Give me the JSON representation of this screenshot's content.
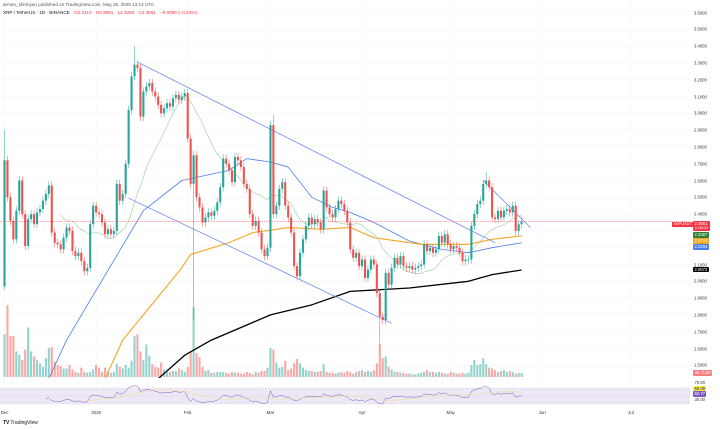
{
  "header": {
    "publisher_line": "arman_shirinyan published on TradingView.com, May 25, 2025 13:14 UTC",
    "symbol": "XRP / TetherUS · 1D · BINANCE",
    "open": "O2.3415",
    "high": "H2.3591",
    "low": "L2.3293",
    "close": "C2.3561",
    "change": "−0.0056 (−0.24%)"
  },
  "footer": {
    "logo_text": "TradingView",
    "logo_icon": "tradingview-logo-icon"
  },
  "colors": {
    "up": "#26a69a",
    "down": "#ef5350",
    "up_volume": "#94d3cd",
    "down_volume": "#f7a9a7",
    "ma_fast": "#9ccc9c",
    "ma_blue": "#4a7df0",
    "ma_orange": "#f5a623",
    "ma_black": "#000000",
    "trendline": "#5b84ec",
    "rsi": "#7e57c2",
    "rsi_ma": "#f0e68c",
    "rsi_band": "#ede7f6"
  },
  "chart_data": {
    "type": "candlestick",
    "interval": "1D",
    "x_start": "2024-12-01",
    "first_open": 1.97,
    "ylim": [
      1.4,
      3.65
    ],
    "grid": true,
    "price_ticks": [
      "3.6000",
      "3.5000",
      "3.4000",
      "3.3000",
      "3.2000",
      "3.1000",
      "3.0000",
      "2.9000",
      "2.8000",
      "2.7000",
      "2.6000",
      "2.5000",
      "2.4000",
      "2.1000",
      "2.0000",
      "1.9000",
      "1.8000",
      "1.7000",
      "1.6000",
      "1.5000"
    ],
    "x_ticks": [
      {
        "label": "Dec",
        "date": "2024-12-01"
      },
      {
        "label": "2025",
        "date": "2025-01-01"
      },
      {
        "label": "Feb",
        "date": "2025-02-01"
      },
      {
        "label": "Mar",
        "date": "2025-03-01"
      },
      {
        "label": "Apr",
        "date": "2025-04-01"
      },
      {
        "label": "May",
        "date": "2025-05-01"
      },
      {
        "label": "Jun",
        "date": "2025-06-01"
      },
      {
        "label": "Jul",
        "date": "2025-07-01"
      }
    ],
    "close": [
      2.72,
      2.5,
      2.36,
      2.25,
      2.42,
      2.6,
      2.4,
      2.21,
      2.37,
      2.4,
      2.34,
      2.41,
      2.43,
      2.48,
      2.52,
      2.57,
      2.29,
      2.23,
      2.22,
      2.19,
      2.26,
      2.32,
      2.3,
      2.18,
      2.15,
      2.17,
      2.12,
      2.06,
      2.08,
      2.34,
      2.45,
      2.41,
      2.4,
      2.35,
      2.28,
      2.31,
      2.28,
      2.3,
      2.58,
      2.48,
      2.52,
      2.7,
      3.02,
      3.22,
      3.29,
      3.27,
      2.98,
      3.13,
      3.16,
      3.18,
      3.13,
      3.1,
      3.05,
      3.0,
      3.03,
      3.06,
      3.04,
      3.09,
      3.11,
      3.08,
      3.1,
      3.12,
      2.85,
      2.58,
      2.75,
      2.5,
      2.44,
      2.35,
      2.38,
      2.41,
      2.39,
      2.42,
      2.47,
      2.56,
      2.73,
      2.7,
      2.66,
      2.59,
      2.74,
      2.72,
      2.68,
      2.58,
      2.55,
      2.4,
      2.33,
      2.36,
      2.29,
      2.19,
      2.15,
      2.2,
      2.93,
      2.4,
      2.45,
      2.55,
      2.59,
      2.45,
      2.38,
      2.29,
      2.09,
      2.03,
      2.17,
      2.25,
      2.33,
      2.38,
      2.34,
      2.37,
      2.35,
      2.31,
      2.54,
      2.44,
      2.4,
      2.38,
      2.43,
      2.48,
      2.46,
      2.42,
      2.35,
      2.19,
      2.14,
      2.17,
      2.09,
      2.13,
      2.02,
      2.07,
      2.13,
      2.1,
      1.93,
      1.79,
      1.77,
      2.05,
      1.98,
      2.08,
      2.14,
      2.1,
      2.15,
      2.09,
      2.08,
      2.09,
      2.07,
      2.08,
      2.09,
      2.1,
      2.22,
      2.18,
      2.2,
      2.17,
      2.19,
      2.27,
      2.23,
      2.28,
      2.22,
      2.19,
      2.21,
      2.2,
      2.17,
      2.12,
      2.13,
      2.13,
      2.33,
      2.4,
      2.46,
      2.48,
      2.58,
      2.6,
      2.56,
      2.38,
      2.37,
      2.42,
      2.38,
      2.42,
      2.43,
      2.41,
      2.45,
      2.3,
      2.34,
      2.3561
    ],
    "notable_wicks": [
      {
        "date": "2024-12-01",
        "high": 2.9,
        "low": 1.95
      },
      {
        "date": "2025-01-14",
        "high": 3.4
      },
      {
        "date": "2025-02-03",
        "low": 1.77
      },
      {
        "date": "2025-03-02",
        "high": 2.99
      },
      {
        "date": "2025-04-07",
        "low": 1.61
      },
      {
        "date": "2025-05-13",
        "high": 2.65
      }
    ],
    "volume": [
      500,
      840,
      480,
      480,
      300,
      260,
      200,
      320,
      580,
      300,
      240,
      200,
      160,
      120,
      220,
      340,
      350,
      180,
      140,
      130,
      100,
      100,
      140,
      90,
      60,
      50,
      110,
      60,
      50,
      60,
      90,
      140,
      110,
      60,
      110,
      70,
      50,
      60,
      150,
      120,
      100,
      140,
      110,
      190,
      480,
      500,
      300,
      200,
      380,
      250,
      150,
      120,
      110,
      170,
      90,
      60,
      60,
      70,
      70,
      100,
      80,
      60,
      120,
      300,
      820,
      280,
      230,
      120,
      70,
      80,
      50,
      50,
      60,
      60,
      60,
      50,
      40,
      60,
      50,
      50,
      40,
      40,
      60,
      50,
      30,
      60,
      50,
      70,
      70,
      110,
      340,
      320,
      170,
      110,
      120,
      190,
      80,
      100,
      160,
      210,
      160,
      110,
      80,
      70,
      70,
      60,
      60,
      70,
      150,
      60,
      50,
      50,
      40,
      50,
      60,
      50,
      70,
      60,
      40,
      60,
      70,
      80,
      60,
      70,
      60,
      80,
      160,
      380,
      220,
      240,
      120,
      90,
      60,
      60,
      50,
      50,
      40,
      40,
      30,
      30,
      40,
      50,
      60,
      80,
      60,
      60,
      50,
      60,
      50,
      40,
      40,
      60,
      50,
      40,
      40,
      50,
      40,
      50,
      140,
      200,
      140,
      150,
      220,
      150,
      110,
      100,
      80,
      60,
      70,
      80,
      60,
      70,
      60,
      40,
      50,
      47
    ],
    "moving_averages": [
      {
        "color_key": "ma_blue",
        "points": [
          [
            "2024-12-16",
            1.42
          ],
          [
            "2024-12-22",
            1.65
          ],
          [
            "2025-01-17",
            2.42
          ],
          [
            "2025-01-30",
            2.6
          ],
          [
            "2025-02-15",
            2.66
          ],
          [
            "2025-02-21",
            2.73
          ],
          [
            "2025-03-01",
            2.71
          ],
          [
            "2025-03-07",
            2.68
          ],
          [
            "2025-03-15",
            2.5
          ],
          [
            "2025-03-22",
            2.44
          ],
          [
            "2025-03-28",
            2.41
          ],
          [
            "2025-04-05",
            2.35
          ],
          [
            "2025-04-17",
            2.24
          ],
          [
            "2025-04-28",
            2.19
          ],
          [
            "2025-05-07",
            2.17
          ],
          [
            "2025-05-15",
            2.2
          ],
          [
            "2025-05-25",
            2.2293
          ]
        ]
      },
      {
        "color_key": "ma_orange",
        "points": [
          [
            "2025-01-04",
            1.42
          ],
          [
            "2025-01-10",
            1.65
          ],
          [
            "2025-01-30",
            2.08
          ],
          [
            "2025-02-02",
            2.16
          ],
          [
            "2025-02-15",
            2.23
          ],
          [
            "2025-02-23",
            2.29
          ],
          [
            "2025-03-07",
            2.32
          ],
          [
            "2025-03-18",
            2.31
          ],
          [
            "2025-03-28",
            2.32
          ],
          [
            "2025-04-05",
            2.26
          ],
          [
            "2025-04-21",
            2.22
          ],
          [
            "2025-05-07",
            2.22
          ],
          [
            "2025-05-15",
            2.25
          ],
          [
            "2025-05-25",
            2.271
          ]
        ]
      },
      {
        "color_key": "ma_black",
        "points": [
          [
            "2025-01-22",
            1.42
          ],
          [
            "2025-01-31",
            1.56
          ],
          [
            "2025-02-09",
            1.65
          ],
          [
            "2025-03-01",
            1.8
          ],
          [
            "2025-03-15",
            1.86
          ],
          [
            "2025-03-28",
            1.94
          ],
          [
            "2025-04-17",
            1.96
          ],
          [
            "2025-05-07",
            2.0
          ],
          [
            "2025-05-15",
            2.04
          ],
          [
            "2025-05-25",
            2.0672
          ]
        ]
      }
    ],
    "trendlines": [
      {
        "from": [
          "2025-01-15",
          3.305
        ],
        "to": [
          "2025-05-16",
          2.23
        ]
      },
      {
        "from": [
          "2025-01-12",
          2.495
        ],
        "to": [
          "2025-04-11",
          1.75
        ]
      },
      {
        "from": [
          "2025-05-12",
          2.6
        ],
        "to": [
          "2025-05-28",
          2.32
        ]
      }
    ],
    "rsi_levels": {
      "upper": 70,
      "middle": 50,
      "lower": 30
    }
  },
  "price_axis": {
    "symbol_tag": "XRPUSDT",
    "last_price": "2.3561",
    "countdown": "10:45:53",
    "ma_fast_value": "2.3387",
    "ma_orange_value": "2.2710",
    "ma_blue_value": "2.2293",
    "ma_black_value": "2.0672",
    "volume_value": "46.714M",
    "rsi_upper": "70.00",
    "rsi_ma_value": "55.08",
    "rsi_value": "50.77",
    "rsi_lower": "30.00"
  }
}
